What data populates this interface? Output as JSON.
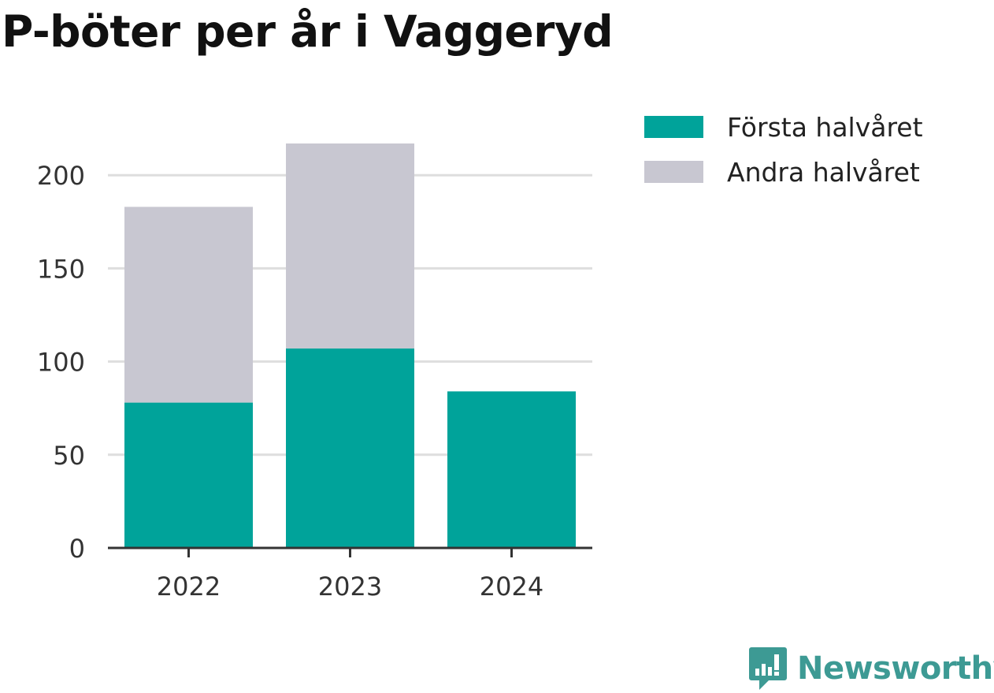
{
  "chart_data": {
    "type": "bar",
    "stacked": true,
    "title": "P-böter per år i Vaggeryd",
    "categories": [
      "2022",
      "2023",
      "2024"
    ],
    "series": [
      {
        "name": "Första halvåret",
        "color": "#00a39a",
        "values": [
          78,
          107,
          84
        ]
      },
      {
        "name": "Andra halvåret",
        "color": "#c8c7d1",
        "values": [
          105,
          110,
          0
        ]
      }
    ],
    "yticks": [
      "0",
      "50",
      "100",
      "150",
      "200"
    ],
    "ylim": [
      0,
      217
    ],
    "grid": true,
    "legend": "right"
  },
  "brand": {
    "name": "Newsworthy",
    "icon": "newsworthy-logo-icon",
    "color": "#3d9a94"
  }
}
